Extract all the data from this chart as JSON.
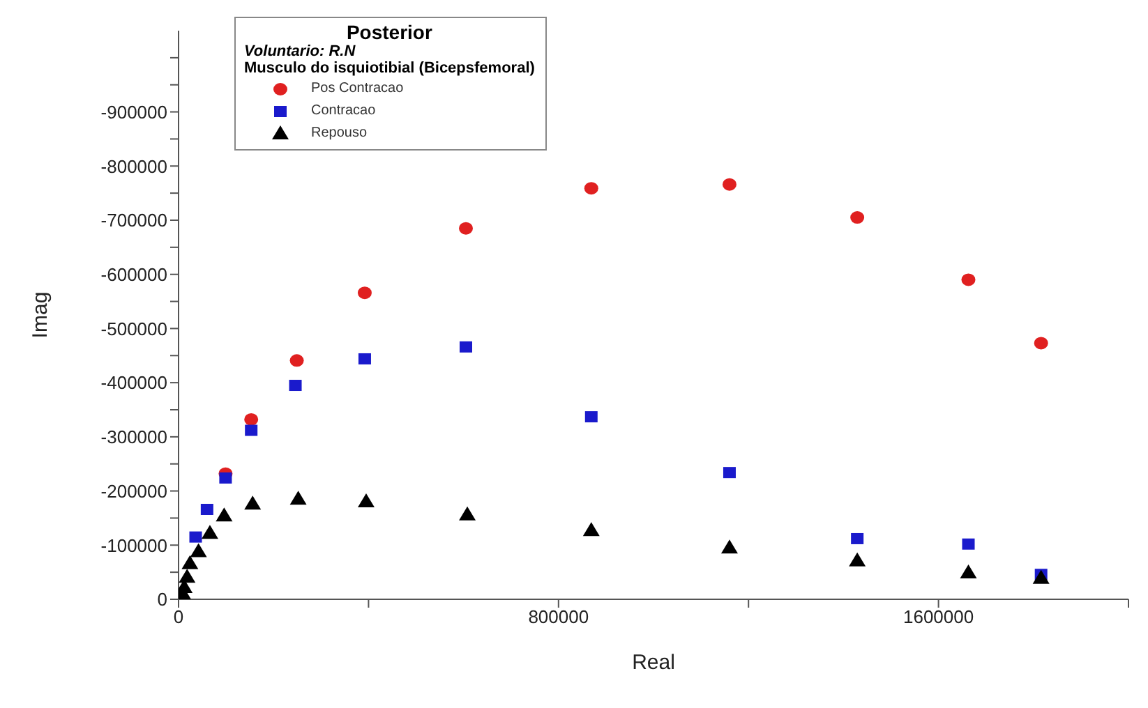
{
  "chart_data": {
    "type": "scatter",
    "title": "Posterior",
    "subtitle": "Voluntario: R.N",
    "legend_title": "Musculo do isquiotibial (Bicepsfemoral)",
    "xlabel": "Real",
    "ylabel": "Imag",
    "xlim": [
      0,
      2000000
    ],
    "xticks": [
      0,
      {
        "value": 400000,
        "label": null
      },
      800000,
      {
        "value": 1200000,
        "label": null
      },
      1600000,
      {
        "value": 2000000,
        "label": null
      }
    ],
    "ylim": [
      0,
      -1050000
    ],
    "yticks": [
      0,
      {
        "value": -50000,
        "label": null
      },
      -100000,
      {
        "value": -150000,
        "label": null
      },
      -200000,
      {
        "value": -250000,
        "label": null
      },
      -300000,
      {
        "value": -350000,
        "label": null
      },
      -400000,
      {
        "value": -450000,
        "label": null
      },
      -500000,
      {
        "value": -550000,
        "label": null
      },
      -600000,
      {
        "value": -650000,
        "label": null
      },
      -700000,
      {
        "value": -750000,
        "label": null
      },
      -800000,
      {
        "value": -850000,
        "label": null
      },
      -900000,
      {
        "value": -950000,
        "label": null
      },
      {
        "value": -1000000,
        "label": null
      }
    ],
    "grid": false,
    "legend": "top left",
    "series": [
      {
        "name": "Pos Contracao",
        "color": "#e02020",
        "marker": "circle",
        "x": [
          99000,
          153000,
          249000,
          392000,
          605000,
          869000,
          1160000,
          1429000,
          1663000,
          1816000
        ],
        "values": [
          -232000,
          -332000,
          -441000,
          -566000,
          -685000,
          -759000,
          -766000,
          -705000,
          -590000,
          -473000
        ]
      },
      {
        "name": "Contracao",
        "color": "#1a1acc",
        "marker": "square",
        "x": [
          36000,
          60000,
          99000,
          153000,
          246000,
          392000,
          605000,
          869000,
          1160000,
          1429000,
          1663000,
          1816000
        ],
        "values": [
          -115000,
          -166000,
          -224000,
          -312000,
          -395000,
          -444000,
          -466000,
          -337000,
          -234000,
          -112000,
          -102000,
          -46000
        ]
      },
      {
        "name": "Repouso",
        "color": "#000000",
        "marker": "triangle",
        "x": [
          9000,
          12000,
          18000,
          24000,
          42000,
          66000,
          96000,
          156000,
          252000,
          395000,
          608000,
          869000,
          1160000,
          1429000,
          1663000,
          1816000
        ],
        "values": [
          -10000,
          -22000,
          -41000,
          -66000,
          -88000,
          -122000,
          -154000,
          -176000,
          -185000,
          -180000,
          -156000,
          -127000,
          -95000,
          -71000,
          -49000,
          -39000
        ]
      }
    ]
  }
}
